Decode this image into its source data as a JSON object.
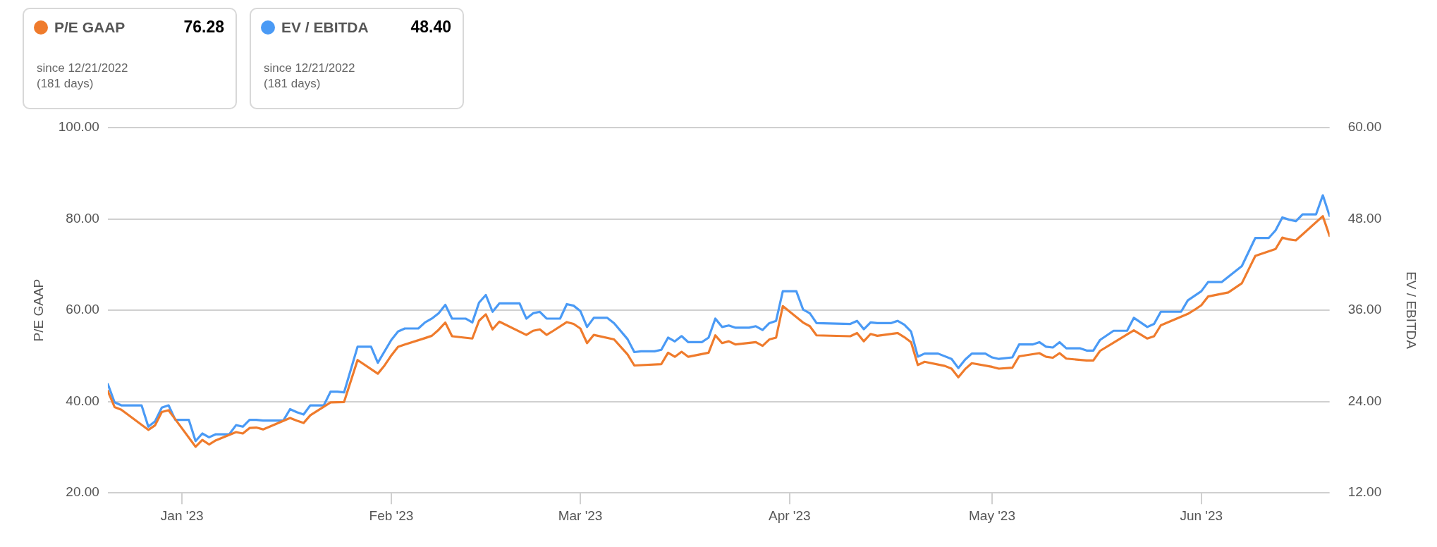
{
  "chart_data": {
    "type": "line",
    "ylabel": "P/E GAAP",
    "y2label": "EV / EBITDA",
    "annotations": [
      "76.28",
      "48.40",
      "since 12/21/2022",
      "(181 days)"
    ],
    "xlim": [
      "2022-12-21",
      "2023-06-20"
    ],
    "xticks": [
      {
        "value": "2023-01-01",
        "label": "Jan '23"
      },
      {
        "value": "2023-02-01",
        "label": "Feb '23"
      },
      {
        "value": "2023-03-01",
        "label": "Mar '23"
      },
      {
        "value": "2023-04-01",
        "label": "Apr '23"
      },
      {
        "value": "2023-05-01",
        "label": "May '23"
      },
      {
        "value": "2023-06-01",
        "label": "Jun '23"
      }
    ],
    "ylim": [
      20,
      100
    ],
    "yticks": [
      {
        "value": 20,
        "label": "20.00"
      },
      {
        "value": 40,
        "label": "40.00"
      },
      {
        "value": 60,
        "label": "60.00"
      },
      {
        "value": 80,
        "label": "80.00"
      },
      {
        "value": 100,
        "label": "100.00"
      }
    ],
    "y2lim": [
      12,
      60
    ],
    "y2ticks": [
      {
        "value": 12,
        "label": "12.00"
      },
      {
        "value": 24,
        "label": "24.00"
      },
      {
        "value": 36,
        "label": "36.00"
      },
      {
        "value": 48,
        "label": "48.00"
      },
      {
        "value": 60,
        "label": "60.00"
      }
    ],
    "grid": "y",
    "legend": "top left",
    "marker": "none",
    "line_style": "solid",
    "series": [
      {
        "name": "P/E GAAP",
        "color": "#ef7b2c",
        "x": [
          "2022-12-21",
          "2022-12-22",
          "2022-12-23",
          "2022-12-27",
          "2022-12-28",
          "2022-12-29",
          "2022-12-30",
          "2022-12-31",
          "2023-01-03",
          "2023-01-04",
          "2023-01-05",
          "2023-01-06",
          "2023-01-09",
          "2023-01-10",
          "2023-01-11",
          "2023-01-12",
          "2023-01-13",
          "2023-01-17",
          "2023-01-18",
          "2023-01-19",
          "2023-01-20",
          "2023-01-23",
          "2023-01-25",
          "2023-01-27",
          "2023-01-30",
          "2023-01-31",
          "2023-02-01",
          "2023-02-02",
          "2023-02-03",
          "2023-02-06",
          "2023-02-07",
          "2023-02-08",
          "2023-02-09",
          "2023-02-10",
          "2023-02-13",
          "2023-02-14",
          "2023-02-15",
          "2023-02-16",
          "2023-02-17",
          "2023-02-21",
          "2023-02-22",
          "2023-02-23",
          "2023-02-24",
          "2023-02-25",
          "2023-02-27",
          "2023-02-28",
          "2023-03-01",
          "2023-03-02",
          "2023-03-03",
          "2023-03-06",
          "2023-03-08",
          "2023-03-09",
          "2023-03-13",
          "2023-03-14",
          "2023-03-15",
          "2023-03-16",
          "2023-03-17",
          "2023-03-20",
          "2023-03-21",
          "2023-03-22",
          "2023-03-23",
          "2023-03-24",
          "2023-03-27",
          "2023-03-28",
          "2023-03-29",
          "2023-03-30",
          "2023-03-31",
          "2023-04-03",
          "2023-04-04",
          "2023-04-05",
          "2023-04-10",
          "2023-04-11",
          "2023-04-12",
          "2023-04-13",
          "2023-04-14",
          "2023-04-17",
          "2023-04-18",
          "2023-04-19",
          "2023-04-20",
          "2023-04-21",
          "2023-04-24",
          "2023-04-25",
          "2023-04-26",
          "2023-04-27",
          "2023-04-28",
          "2023-05-01",
          "2023-05-02",
          "2023-05-04",
          "2023-05-05",
          "2023-05-08",
          "2023-05-09",
          "2023-05-10",
          "2023-05-11",
          "2023-05-12",
          "2023-05-15",
          "2023-05-16",
          "2023-05-17",
          "2023-05-19",
          "2023-05-22",
          "2023-05-24",
          "2023-05-25",
          "2023-05-26",
          "2023-05-30",
          "2023-05-31",
          "2023-06-01",
          "2023-06-02",
          "2023-06-05",
          "2023-06-07",
          "2023-06-09",
          "2023-06-12",
          "2023-06-13",
          "2023-06-14",
          "2023-06-15",
          "2023-06-16",
          "2023-06-19",
          "2023-06-20"
        ],
        "values": [
          42.3,
          38.8,
          38.2,
          33.8,
          34.8,
          37.7,
          38.1,
          36.1,
          30.1,
          31.6,
          30.6,
          31.5,
          33.3,
          33.0,
          34.2,
          34.3,
          33.9,
          36.4,
          35.8,
          35.3,
          37.0,
          39.8,
          39.9,
          49.1,
          46.1,
          47.9,
          50.1,
          52.0,
          52.5,
          53.9,
          54.4,
          55.7,
          57.3,
          54.3,
          53.8,
          57.7,
          59.1,
          55.8,
          57.5,
          54.6,
          55.5,
          55.8,
          54.6,
          55.5,
          57.4,
          57.0,
          56.0,
          52.8,
          54.6,
          53.6,
          50.3,
          47.9,
          48.2,
          50.7,
          49.8,
          50.9,
          49.8,
          50.7,
          54.5,
          52.8,
          53.2,
          52.5,
          53.0,
          52.2,
          53.6,
          54.0,
          60.9,
          57.3,
          56.5,
          54.5,
          54.3,
          55.0,
          53.2,
          54.8,
          54.4,
          55.0,
          54.1,
          53.0,
          48.0,
          48.7,
          47.8,
          47.2,
          45.3,
          47.1,
          48.4,
          47.6,
          47.2,
          47.4,
          49.9,
          50.6,
          49.8,
          49.6,
          50.6,
          49.4,
          49.0,
          49.0,
          51.1,
          52.9,
          55.6,
          53.8,
          54.3,
          56.7,
          59.2,
          60.1,
          61.1,
          63.0,
          63.9,
          65.9,
          71.9,
          73.4,
          75.9,
          75.5,
          75.3,
          76.6,
          80.6,
          76.28
        ]
      },
      {
        "name": "EV / EBITDA",
        "color": "#4a9af5",
        "axis": "y2",
        "x": [
          "2022-12-21",
          "2022-12-22",
          "2022-12-23",
          "2022-12-26",
          "2022-12-27",
          "2022-12-28",
          "2022-12-29",
          "2022-12-30",
          "2022-12-31",
          "2023-01-02",
          "2023-01-03",
          "2023-01-04",
          "2023-01-05",
          "2023-01-06",
          "2023-01-08",
          "2023-01-09",
          "2023-01-10",
          "2023-01-11",
          "2023-01-12",
          "2023-01-13",
          "2023-01-16",
          "2023-01-17",
          "2023-01-18",
          "2023-01-19",
          "2023-01-20",
          "2023-01-22",
          "2023-01-23",
          "2023-01-24",
          "2023-01-25",
          "2023-01-27",
          "2023-01-29",
          "2023-01-30",
          "2023-02-01",
          "2023-02-02",
          "2023-02-03",
          "2023-02-05",
          "2023-02-06",
          "2023-02-07",
          "2023-02-08",
          "2023-02-09",
          "2023-02-10",
          "2023-02-12",
          "2023-02-13",
          "2023-02-14",
          "2023-02-15",
          "2023-02-16",
          "2023-02-17",
          "2023-02-20",
          "2023-02-21",
          "2023-02-22",
          "2023-02-23",
          "2023-02-24",
          "2023-02-26",
          "2023-02-27",
          "2023-02-28",
          "2023-03-01",
          "2023-03-02",
          "2023-03-03",
          "2023-03-05",
          "2023-03-06",
          "2023-03-08",
          "2023-03-09",
          "2023-03-10",
          "2023-03-12",
          "2023-03-13",
          "2023-03-14",
          "2023-03-15",
          "2023-03-16",
          "2023-03-17",
          "2023-03-19",
          "2023-03-20",
          "2023-03-21",
          "2023-03-22",
          "2023-03-23",
          "2023-03-24",
          "2023-03-26",
          "2023-03-27",
          "2023-03-28",
          "2023-03-29",
          "2023-03-30",
          "2023-03-31",
          "2023-04-02",
          "2023-04-03",
          "2023-04-04",
          "2023-04-05",
          "2023-04-10",
          "2023-04-11",
          "2023-04-12",
          "2023-04-13",
          "2023-04-14",
          "2023-04-16",
          "2023-04-17",
          "2023-04-18",
          "2023-04-19",
          "2023-04-20",
          "2023-04-21",
          "2023-04-23",
          "2023-04-25",
          "2023-04-26",
          "2023-04-27",
          "2023-04-28",
          "2023-04-30",
          "2023-05-01",
          "2023-05-02",
          "2023-05-04",
          "2023-05-05",
          "2023-05-07",
          "2023-05-08",
          "2023-05-09",
          "2023-05-10",
          "2023-05-11",
          "2023-05-12",
          "2023-05-14",
          "2023-05-15",
          "2023-05-16",
          "2023-05-17",
          "2023-05-19",
          "2023-05-21",
          "2023-05-22",
          "2023-05-24",
          "2023-05-25",
          "2023-05-26",
          "2023-05-29",
          "2023-05-30",
          "2023-05-31",
          "2023-06-01",
          "2023-06-02",
          "2023-06-04",
          "2023-06-07",
          "2023-06-09",
          "2023-06-11",
          "2023-06-12",
          "2023-06-13",
          "2023-06-14",
          "2023-06-15",
          "2023-06-16",
          "2023-06-18",
          "2023-06-19",
          "2023-06-20"
        ],
        "values": [
          26.3,
          23.9,
          23.5,
          23.5,
          20.7,
          21.4,
          23.2,
          23.5,
          21.6,
          21.6,
          18.8,
          19.8,
          19.3,
          19.7,
          19.7,
          20.9,
          20.7,
          21.6,
          21.6,
          21.5,
          21.5,
          23.0,
          22.6,
          22.3,
          23.5,
          23.5,
          25.3,
          25.3,
          25.2,
          31.2,
          31.2,
          29.1,
          32.1,
          33.2,
          33.6,
          33.6,
          34.4,
          34.9,
          35.6,
          36.7,
          34.9,
          34.9,
          34.4,
          37.0,
          38.0,
          35.8,
          36.9,
          36.9,
          34.9,
          35.6,
          35.8,
          34.9,
          34.9,
          36.8,
          36.6,
          35.9,
          33.8,
          35.0,
          35.0,
          34.3,
          32.2,
          30.5,
          30.6,
          30.6,
          30.8,
          32.4,
          31.9,
          32.6,
          31.8,
          31.8,
          32.4,
          34.9,
          33.8,
          34.0,
          33.7,
          33.7,
          33.9,
          33.4,
          34.3,
          34.6,
          38.5,
          38.5,
          36.1,
          35.6,
          34.3,
          34.2,
          34.6,
          33.5,
          34.4,
          34.3,
          34.3,
          34.6,
          34.1,
          33.2,
          29.9,
          30.3,
          30.3,
          29.6,
          28.4,
          29.5,
          30.3,
          30.3,
          29.8,
          29.6,
          29.8,
          31.5,
          31.5,
          31.8,
          31.2,
          31.1,
          31.8,
          31.0,
          31.0,
          30.7,
          30.7,
          32.1,
          33.3,
          33.3,
          35.0,
          33.8,
          34.2,
          35.8,
          35.8,
          37.3,
          37.9,
          38.5,
          39.7,
          39.7,
          41.8,
          45.5,
          45.5,
          46.5,
          48.2,
          47.9,
          47.7,
          48.6,
          48.6,
          51.1,
          48.4
        ]
      }
    ]
  }
}
